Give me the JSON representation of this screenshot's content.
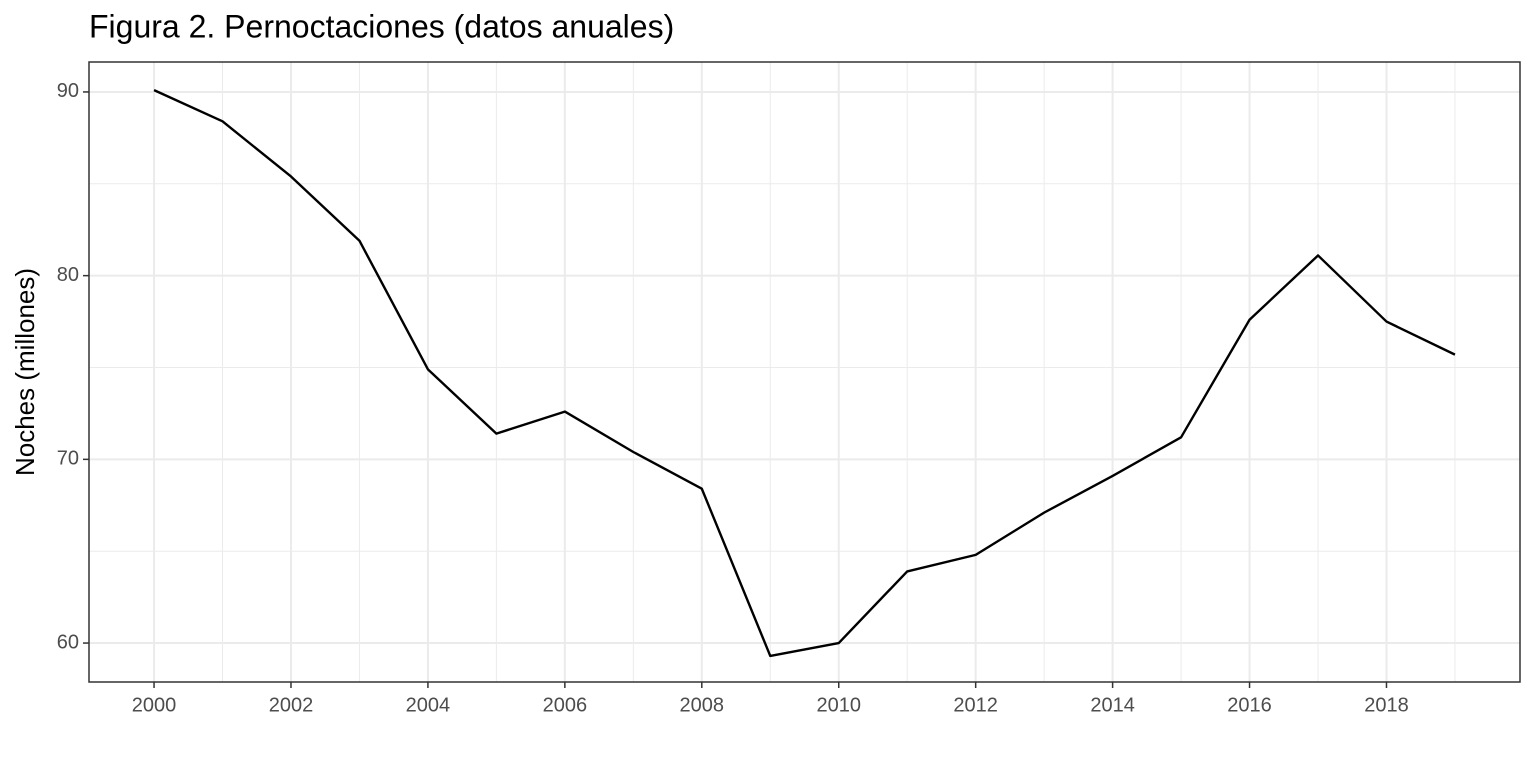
{
  "chart_data": {
    "type": "line",
    "title": "Figura 2. Pernoctaciones (datos anuales)",
    "y_label": "Noches (millones)",
    "x": [
      2000,
      2001,
      2002,
      2003,
      2004,
      2005,
      2006,
      2007,
      2008,
      2009,
      2010,
      2011,
      2012,
      2013,
      2014,
      2015,
      2016,
      2017,
      2018,
      2019
    ],
    "series": [
      {
        "color": "#000000",
        "values": [
          90.1,
          88.4,
          85.4,
          81.9,
          74.9,
          71.4,
          72.6,
          70.4,
          68.4,
          59.3,
          60.0,
          63.9,
          64.8,
          67.1,
          69.1,
          71.2,
          77.6,
          81.1,
          77.5,
          75.7
        ]
      }
    ],
    "xlim": [
      1999.05,
      2019.95
    ],
    "xticks": [
      2000,
      2002,
      2004,
      2006,
      2008,
      2010,
      2012,
      2014,
      2016,
      2018
    ],
    "ylim": [
      57.88,
      91.63
    ],
    "yticks": [
      60,
      70,
      80,
      90
    ],
    "grid": true
  }
}
